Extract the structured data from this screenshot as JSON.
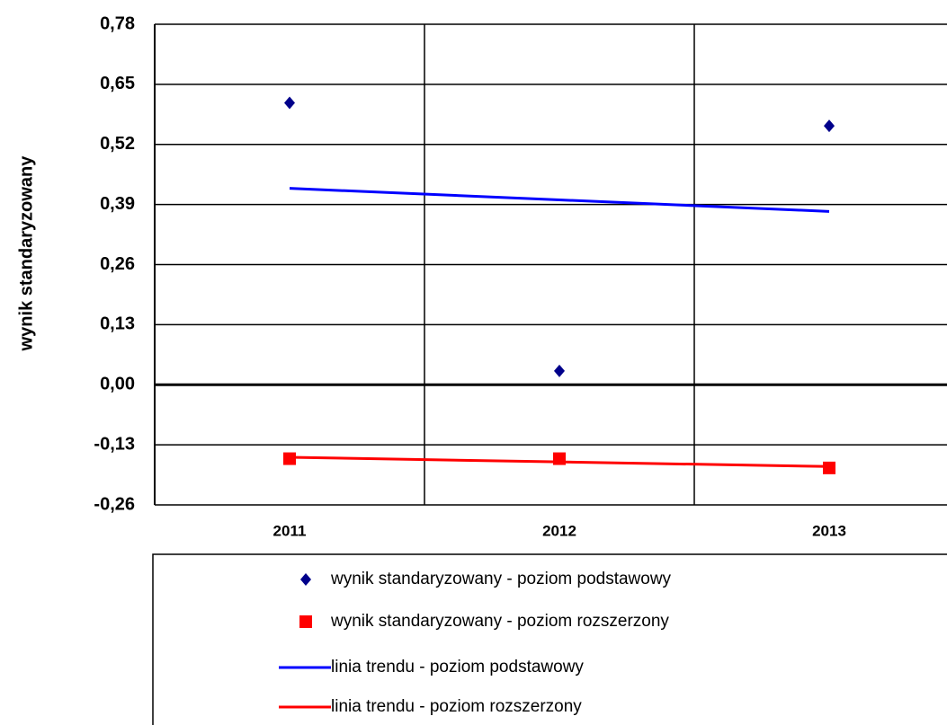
{
  "chart_data": {
    "type": "line",
    "y_label": "wynik standaryzowany",
    "categories": [
      "2011",
      "2012",
      "2013"
    ],
    "ylim": [
      -0.26,
      0.78
    ],
    "yticks": [
      {
        "value": 0.78,
        "label": "0,78"
      },
      {
        "value": 0.65,
        "label": "0,65"
      },
      {
        "value": 0.52,
        "label": "0,52"
      },
      {
        "value": 0.39,
        "label": "0,39"
      },
      {
        "value": 0.26,
        "label": "0,26"
      },
      {
        "value": 0.13,
        "label": "0,13"
      },
      {
        "value": 0,
        "label": "0,00"
      },
      {
        "value": -0.13,
        "label": "-0,13"
      },
      {
        "value": -0.26,
        "label": "-0,26"
      }
    ],
    "grid": true,
    "series": [
      {
        "name": "wynik standaryzowany - poziom podstawowy",
        "color": "#00008b",
        "marker": "diamond",
        "values": [
          0.61,
          0.03,
          0.56
        ]
      },
      {
        "name": "wynik standaryzowany - poziom rozszerzony",
        "color": "#ff0000",
        "marker": "square",
        "values": [
          -0.16,
          -0.16,
          -0.18
        ]
      },
      {
        "name": "linia trendu - poziom podstawowy",
        "color": "#0000ff",
        "marker": "none",
        "values": [
          0.425,
          0.4,
          0.375
        ]
      },
      {
        "name": "linia trendu - poziom rozszerzony",
        "color": "#ff0000",
        "marker": "none",
        "values": [
          -0.157,
          -0.167,
          -0.177
        ]
      }
    ]
  }
}
